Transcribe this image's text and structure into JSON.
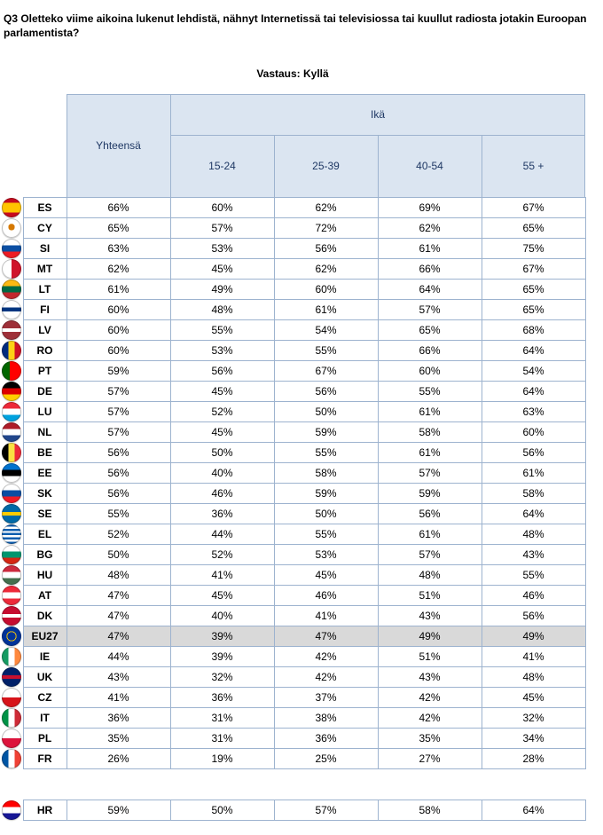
{
  "question": "Q3 Oletteko viime aikoina lukenut lehdistä, nähnyt Internetissä tai televisiossa tai kuullut radiosta jotakin Euroopan parlamentista?",
  "subtitle": "Vastaus: Kyllä",
  "headers": {
    "total": "Yhteensä",
    "age_group": "Ikä",
    "ages": [
      "15-24",
      "25-39",
      "40-54",
      "55 +"
    ]
  },
  "colors": {
    "header_bg": "#dbe5f1",
    "header_text": "#1f3864",
    "grid": "#9db3cf",
    "highlight_row": "#d9d9d9"
  },
  "chart_data": {
    "type": "table",
    "title": "Vastaus: Kyllä",
    "columns": [
      "Yhteensä",
      "15-24",
      "25-39",
      "40-54",
      "55 +"
    ],
    "rows": [
      {
        "code": "ES",
        "flag": "flag-es-icon",
        "values": [
          "66%",
          "60%",
          "62%",
          "69%",
          "67%"
        ]
      },
      {
        "code": "CY",
        "flag": "flag-cy-icon",
        "values": [
          "65%",
          "57%",
          "72%",
          "62%",
          "65%"
        ]
      },
      {
        "code": "SI",
        "flag": "flag-si-icon",
        "values": [
          "63%",
          "53%",
          "56%",
          "61%",
          "75%"
        ]
      },
      {
        "code": "MT",
        "flag": "flag-mt-icon",
        "values": [
          "62%",
          "45%",
          "62%",
          "66%",
          "67%"
        ]
      },
      {
        "code": "LT",
        "flag": "flag-lt-icon",
        "values": [
          "61%",
          "49%",
          "60%",
          "64%",
          "65%"
        ]
      },
      {
        "code": "FI",
        "flag": "flag-fi-icon",
        "values": [
          "60%",
          "48%",
          "61%",
          "57%",
          "65%"
        ]
      },
      {
        "code": "LV",
        "flag": "flag-lv-icon",
        "values": [
          "60%",
          "55%",
          "54%",
          "65%",
          "68%"
        ]
      },
      {
        "code": "RO",
        "flag": "flag-ro-icon",
        "values": [
          "60%",
          "53%",
          "55%",
          "66%",
          "64%"
        ]
      },
      {
        "code": "PT",
        "flag": "flag-pt-icon",
        "values": [
          "59%",
          "56%",
          "67%",
          "60%",
          "54%"
        ]
      },
      {
        "code": "DE",
        "flag": "flag-de-icon",
        "values": [
          "57%",
          "45%",
          "56%",
          "55%",
          "64%"
        ]
      },
      {
        "code": "LU",
        "flag": "flag-lu-icon",
        "values": [
          "57%",
          "52%",
          "50%",
          "61%",
          "63%"
        ]
      },
      {
        "code": "NL",
        "flag": "flag-nl-icon",
        "values": [
          "57%",
          "45%",
          "59%",
          "58%",
          "60%"
        ]
      },
      {
        "code": "BE",
        "flag": "flag-be-icon",
        "values": [
          "56%",
          "50%",
          "55%",
          "61%",
          "56%"
        ]
      },
      {
        "code": "EE",
        "flag": "flag-ee-icon",
        "values": [
          "56%",
          "40%",
          "58%",
          "57%",
          "61%"
        ]
      },
      {
        "code": "SK",
        "flag": "flag-sk-icon",
        "values": [
          "56%",
          "46%",
          "59%",
          "59%",
          "58%"
        ]
      },
      {
        "code": "SE",
        "flag": "flag-se-icon",
        "values": [
          "55%",
          "36%",
          "50%",
          "56%",
          "64%"
        ]
      },
      {
        "code": "EL",
        "flag": "flag-el-icon",
        "values": [
          "52%",
          "44%",
          "55%",
          "61%",
          "48%"
        ]
      },
      {
        "code": "BG",
        "flag": "flag-bg-icon",
        "values": [
          "50%",
          "52%",
          "53%",
          "57%",
          "43%"
        ]
      },
      {
        "code": "HU",
        "flag": "flag-hu-icon",
        "values": [
          "48%",
          "41%",
          "45%",
          "48%",
          "55%"
        ]
      },
      {
        "code": "AT",
        "flag": "flag-at-icon",
        "values": [
          "47%",
          "45%",
          "46%",
          "51%",
          "46%"
        ]
      },
      {
        "code": "DK",
        "flag": "flag-dk-icon",
        "values": [
          "47%",
          "40%",
          "41%",
          "43%",
          "56%"
        ]
      },
      {
        "code": "EU27",
        "flag": "flag-eu-icon",
        "values": [
          "47%",
          "39%",
          "47%",
          "49%",
          "49%"
        ],
        "highlight": true
      },
      {
        "code": "IE",
        "flag": "flag-ie-icon",
        "values": [
          "44%",
          "39%",
          "42%",
          "51%",
          "41%"
        ]
      },
      {
        "code": "UK",
        "flag": "flag-uk-icon",
        "values": [
          "43%",
          "32%",
          "42%",
          "43%",
          "48%"
        ]
      },
      {
        "code": "CZ",
        "flag": "flag-cz-icon",
        "values": [
          "41%",
          "36%",
          "37%",
          "42%",
          "45%"
        ]
      },
      {
        "code": "IT",
        "flag": "flag-it-icon",
        "values": [
          "36%",
          "31%",
          "38%",
          "42%",
          "32%"
        ]
      },
      {
        "code": "PL",
        "flag": "flag-pl-icon",
        "values": [
          "35%",
          "31%",
          "36%",
          "35%",
          "34%"
        ]
      },
      {
        "code": "FR",
        "flag": "flag-fr-icon",
        "values": [
          "26%",
          "19%",
          "25%",
          "27%",
          "28%"
        ]
      }
    ],
    "extra_rows": [
      {
        "code": "HR",
        "flag": "flag-hr-icon",
        "values": [
          "59%",
          "50%",
          "57%",
          "58%",
          "64%"
        ]
      }
    ]
  }
}
